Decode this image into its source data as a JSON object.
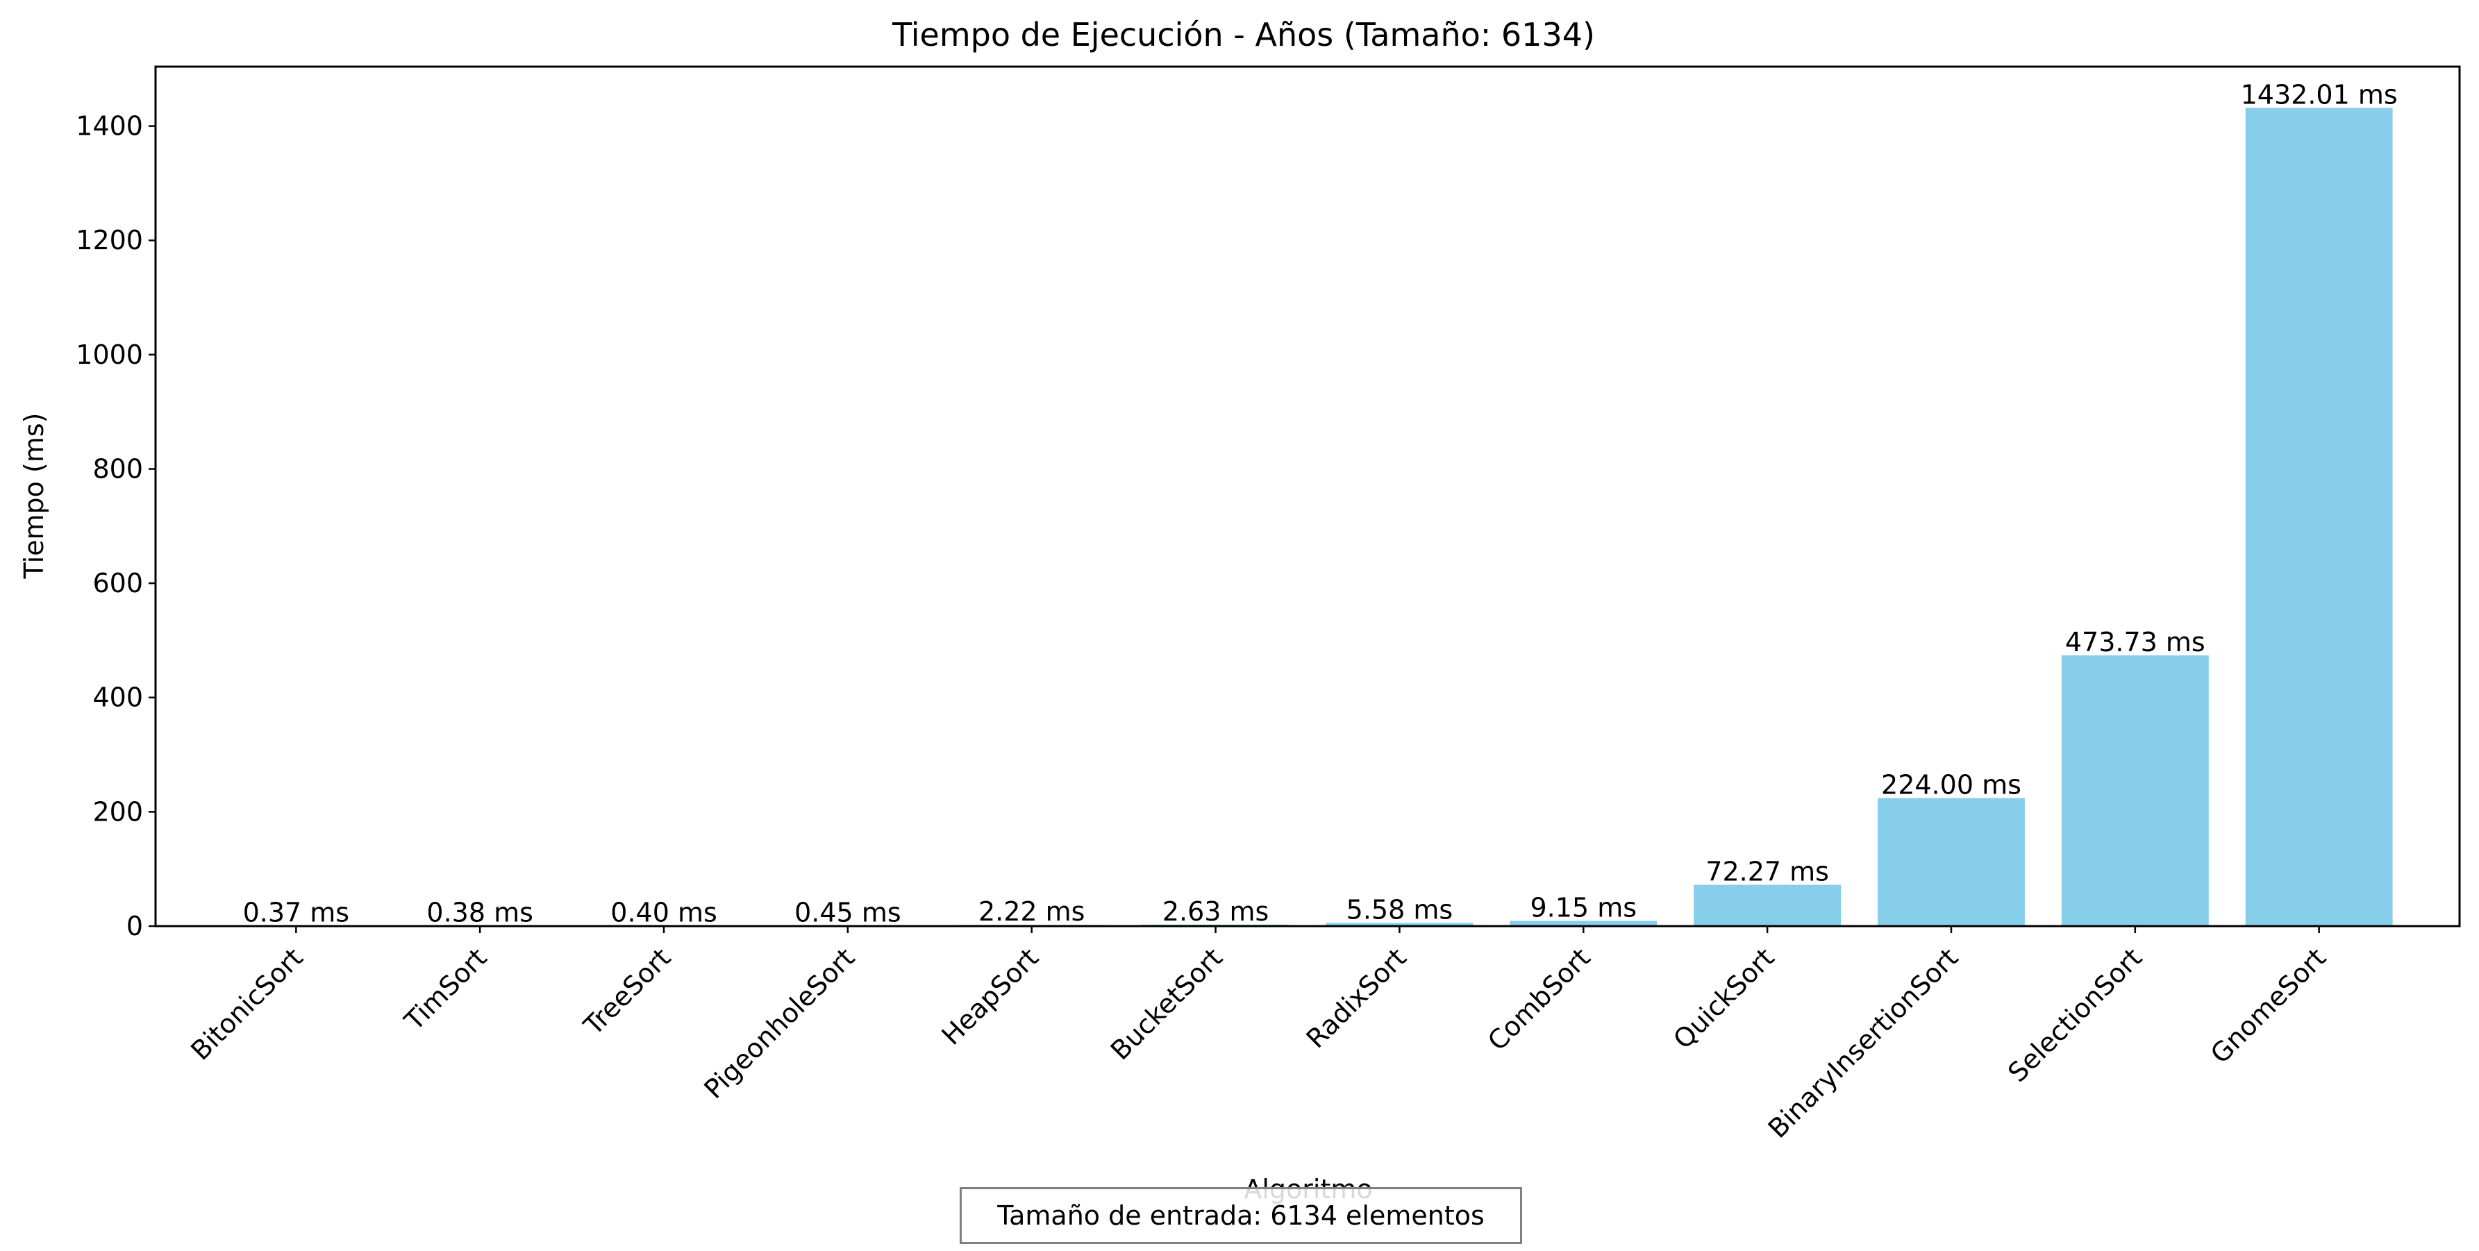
{
  "chart_data": {
    "type": "bar",
    "title": "Tiempo de Ejecución - Años (Tamaño: 6134)",
    "xlabel": "Algoritmo",
    "ylabel": "Tiempo (ms)",
    "ylim": [
      0,
      1504
    ],
    "yticks": [
      0,
      200,
      400,
      600,
      800,
      1000,
      1200,
      1400
    ],
    "categories": [
      "BitonicSort",
      "TimSort",
      "TreeSort",
      "PigeonholeSort",
      "HeapSort",
      "BucketSort",
      "RadixSort",
      "CombSort",
      "QuickSort",
      "BinaryInsertionSort",
      "SelectionSort",
      "GnomeSort"
    ],
    "values": [
      0.37,
      0.38,
      0.4,
      0.45,
      2.22,
      2.63,
      5.58,
      9.15,
      72.27,
      224.0,
      473.73,
      1432.01
    ],
    "value_labels": [
      "0.37 ms",
      "0.38 ms",
      "0.40 ms",
      "0.45 ms",
      "2.22 ms",
      "2.63 ms",
      "5.58 ms",
      "9.15 ms",
      "72.27 ms",
      "224.00 ms",
      "473.73 ms",
      "1432.01 ms"
    ],
    "bar_color": "#87CEEB",
    "grid": false,
    "legend": "none"
  },
  "annotation": {
    "text": "Tamaño de entrada: 6134 elementos"
  }
}
